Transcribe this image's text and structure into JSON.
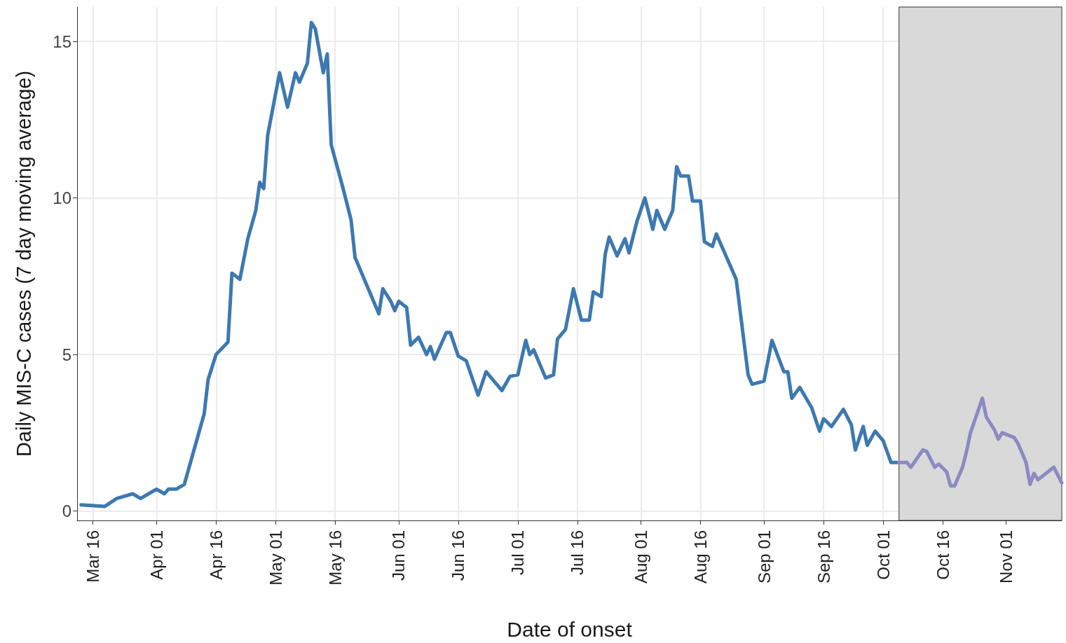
{
  "chart_data": {
    "type": "line",
    "xlabel": "Date of onset",
    "ylabel": "Daily MIS-C cases (7 day moving average)",
    "xlim": [
      "--03-12",
      "--11-15"
    ],
    "ylim": [
      -0.3,
      16.1
    ],
    "yticks": [
      0,
      5,
      10,
      15
    ],
    "xticks": [
      {
        "value": "--03-16",
        "label": "Mar 16"
      },
      {
        "value": "--04-01",
        "label": "Apr 01"
      },
      {
        "value": "--04-16",
        "label": "Apr 16"
      },
      {
        "value": "--05-01",
        "label": "May 01"
      },
      {
        "value": "--05-16",
        "label": "May 16"
      },
      {
        "value": "--06-01",
        "label": "Jun 01"
      },
      {
        "value": "--06-16",
        "label": "Jun 16"
      },
      {
        "value": "--07-01",
        "label": "Jul 01"
      },
      {
        "value": "--07-16",
        "label": "Jul 16"
      },
      {
        "value": "--08-01",
        "label": "Aug 01"
      },
      {
        "value": "--08-16",
        "label": "Aug 16"
      },
      {
        "value": "--09-01",
        "label": "Sep 01"
      },
      {
        "value": "--09-16",
        "label": "Sep 16"
      },
      {
        "value": "--10-01",
        "label": "Oct 01"
      },
      {
        "value": "--10-16",
        "label": "Oct 16"
      },
      {
        "value": "--11-01",
        "label": "Nov 01"
      }
    ],
    "grid": true,
    "marker": "none",
    "line_style": "solid",
    "bands": [
      {
        "axis": "x",
        "from": "--10-05",
        "to": "--11-15",
        "color": "#d9d9d9"
      }
    ],
    "series": [
      {
        "color": "#3d79b0",
        "x": [
          "--03-13",
          "--03-19",
          "--03-22",
          "--03-26",
          "--03-28",
          "--03-30",
          "--04-01",
          "--04-03",
          "--04-04",
          "--04-06",
          "--04-08",
          "--04-09",
          "--04-11",
          "--04-13",
          "--04-14",
          "--04-16",
          "--04-19",
          "--04-20",
          "--04-22",
          "--04-24",
          "--04-26",
          "--04-27",
          "--04-28",
          "--04-29",
          "--05-02",
          "--05-04",
          "--05-06",
          "--05-07",
          "--05-09",
          "--05-10",
          "--05-11",
          "--05-13",
          "--05-14",
          "--05-15",
          "--05-18",
          "--05-20",
          "--05-21",
          "--05-24",
          "--05-27",
          "--05-28",
          "--05-30",
          "--05-31",
          "--06-01",
          "--06-03",
          "--06-04",
          "--06-06",
          "--06-08",
          "--06-09",
          "--06-10",
          "--06-13",
          "--06-14",
          "--06-16",
          "--06-18",
          "--06-21",
          "--06-23",
          "--06-27",
          "--06-29",
          "--07-01",
          "--07-03",
          "--07-04",
          "--07-05",
          "--07-08",
          "--07-10",
          "--07-11",
          "--07-13",
          "--07-15",
          "--07-17",
          "--07-19",
          "--07-20",
          "--07-22",
          "--07-23",
          "--07-24",
          "--07-26",
          "--07-28",
          "--07-29",
          "--07-31",
          "--08-02",
          "--08-04",
          "--08-05",
          "--08-07",
          "--08-09",
          "--08-10",
          "--08-11",
          "--08-13",
          "--08-14",
          "--08-16",
          "--08-17",
          "--08-19",
          "--08-20",
          "--08-25",
          "--08-28",
          "--08-29",
          "--09-01",
          "--09-03",
          "--09-06",
          "--09-07",
          "--09-08",
          "--09-10",
          "--09-13",
          "--09-15",
          "--09-16",
          "--09-18",
          "--09-21",
          "--09-23",
          "--09-24",
          "--09-26",
          "--09-27",
          "--09-29",
          "--10-01",
          "--10-03",
          "--10-05"
        ],
        "values": [
          0.2,
          0.15,
          0.4,
          0.55,
          0.4,
          0.55,
          0.7,
          0.55,
          0.7,
          0.7,
          0.85,
          1.3,
          2.2,
          3.1,
          4.2,
          5.0,
          5.4,
          7.6,
          7.4,
          8.7,
          9.6,
          10.5,
          10.3,
          12.0,
          14.0,
          12.9,
          14.0,
          13.7,
          14.3,
          15.6,
          15.4,
          14.0,
          14.6,
          11.7,
          10.3,
          9.3,
          8.1,
          7.2,
          6.3,
          7.1,
          6.7,
          6.4,
          6.7,
          6.5,
          5.3,
          5.55,
          5.0,
          5.25,
          4.85,
          5.7,
          5.7,
          4.95,
          4.8,
          3.7,
          4.45,
          3.85,
          4.3,
          4.35,
          5.45,
          5.0,
          5.15,
          4.25,
          4.35,
          5.5,
          5.8,
          7.1,
          6.1,
          6.1,
          7.0,
          6.85,
          8.2,
          8.75,
          8.15,
          8.7,
          8.25,
          9.25,
          10.0,
          9.0,
          9.6,
          9.0,
          9.6,
          11.0,
          10.7,
          10.7,
          9.9,
          9.9,
          8.6,
          8.45,
          8.85,
          7.4,
          4.35,
          4.05,
          4.15,
          5.45,
          4.45,
          4.45,
          3.6,
          3.95,
          3.3,
          2.55,
          2.95,
          2.7,
          3.25,
          2.75,
          1.95,
          2.7,
          2.1,
          2.55,
          2.25,
          1.55,
          1.55
        ]
      },
      {
        "color": "#8c89c2",
        "x": [
          "--10-05",
          "--10-07",
          "--10-08",
          "--10-11",
          "--10-12",
          "--10-14",
          "--10-15",
          "--10-17",
          "--10-18",
          "--10-19",
          "--10-21",
          "--10-22",
          "--10-23",
          "--10-26",
          "--10-27",
          "--10-29",
          "--10-30",
          "--10-31",
          "--11-03",
          "--11-04",
          "--11-06",
          "--11-07",
          "--11-08",
          "--11-09",
          "--11-13",
          "--11-15"
        ],
        "values": [
          1.55,
          1.55,
          1.4,
          1.95,
          1.9,
          1.4,
          1.5,
          1.25,
          0.8,
          0.8,
          1.4,
          1.9,
          2.5,
          3.6,
          3.0,
          2.6,
          2.3,
          2.5,
          2.35,
          2.15,
          1.55,
          0.85,
          1.2,
          1.0,
          1.4,
          0.9
        ]
      }
    ]
  }
}
